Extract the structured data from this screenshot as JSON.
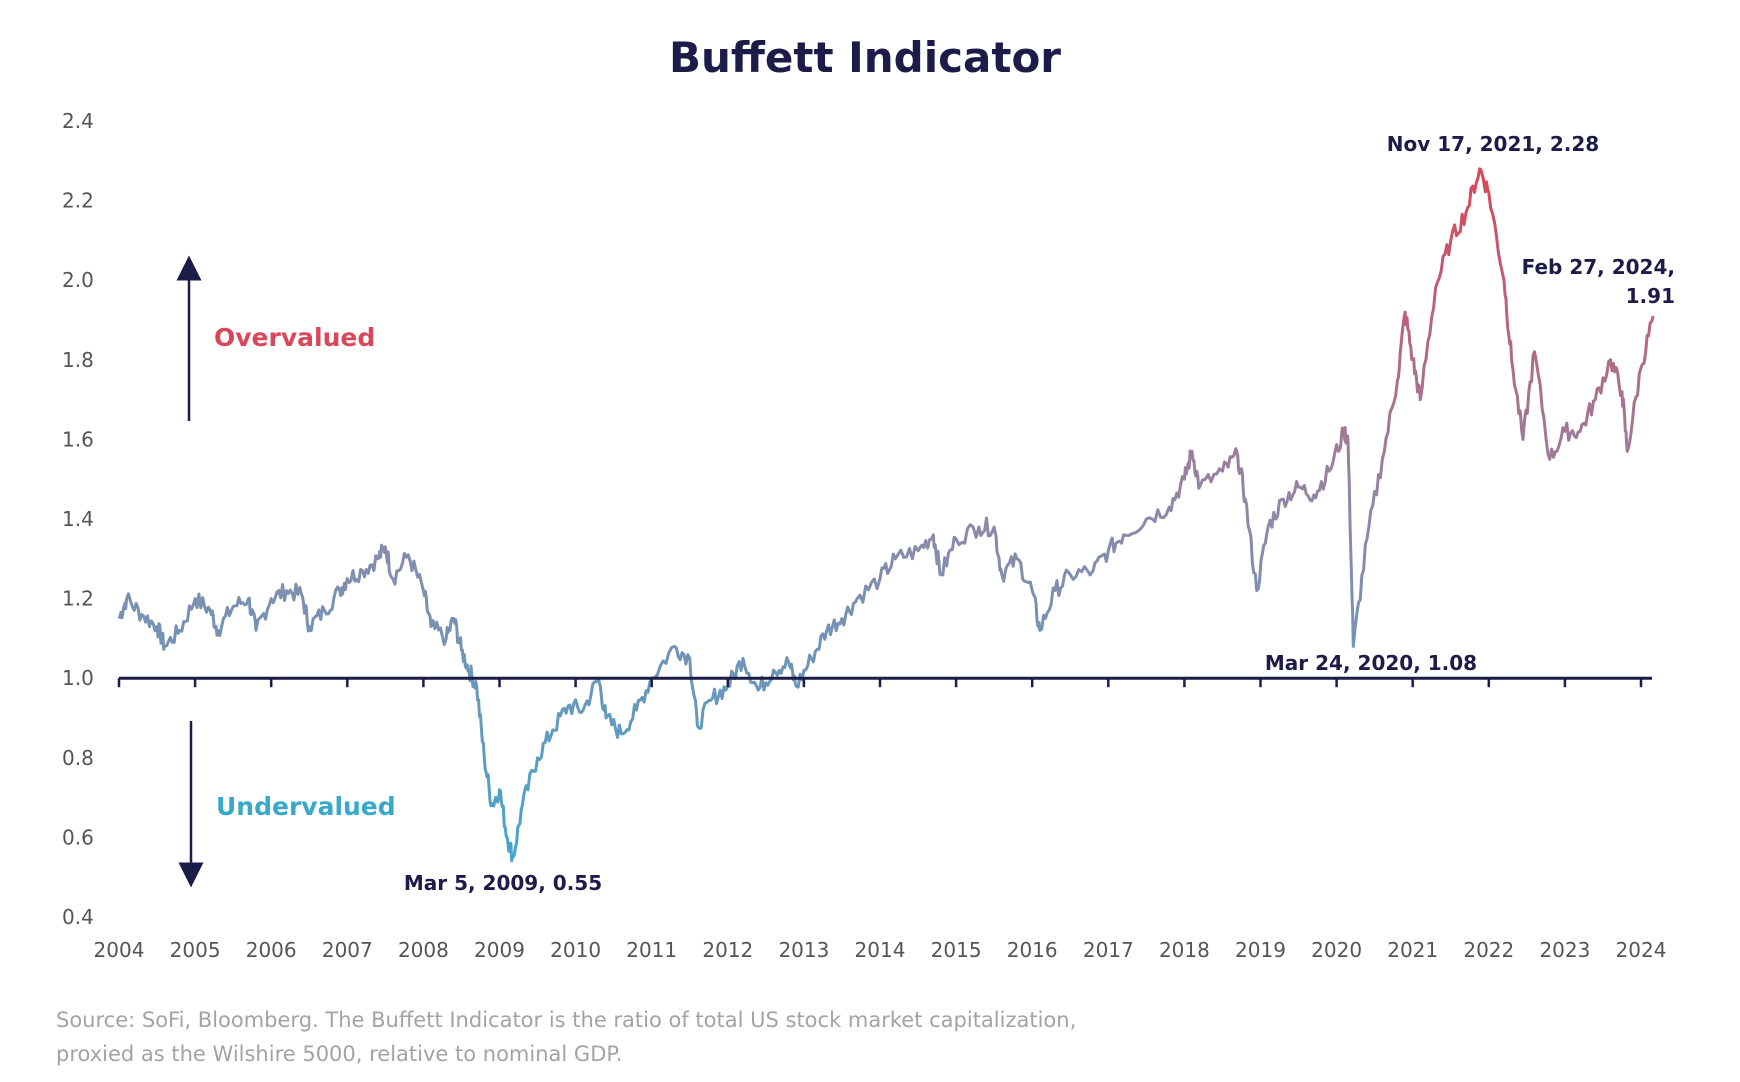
{
  "chart_data": {
    "type": "line",
    "title": "Buffett Indicator",
    "xlabel": "",
    "ylabel": "",
    "xlim": [
      2004,
      2024.2
    ],
    "ylim": [
      0.4,
      2.4
    ],
    "x_ticks": [
      "2004",
      "2005",
      "2006",
      "2007",
      "2008",
      "2009",
      "2010",
      "2011",
      "2012",
      "2013",
      "2014",
      "2015",
      "2016",
      "2017",
      "2018",
      "2019",
      "2020",
      "2021",
      "2022",
      "2023",
      "2024"
    ],
    "y_ticks": [
      "2.4",
      "2.2",
      "2.0",
      "1.8",
      "1.6",
      "1.4",
      "1.2",
      "1.0",
      "0.8",
      "0.6",
      "0.4"
    ],
    "grid": false,
    "reference_line": 1.0,
    "colors": {
      "low": "#45a6cc",
      "mid": "#8f88a8",
      "high": "#d9475a",
      "text": "#1d1b48",
      "overvalued": "#d9485a",
      "undervalued": "#38a9c9"
    },
    "series": [
      {
        "x": [
          2004.0,
          2004.1,
          2004.3,
          2004.5,
          2004.6,
          2004.8,
          2005.0,
          2005.2,
          2005.3,
          2005.5,
          2005.7,
          2005.8,
          2006.0,
          2006.2,
          2006.4,
          2006.5,
          2006.7,
          2006.9,
          2007.0,
          2007.2,
          2007.4,
          2007.5,
          2007.6,
          2007.8,
          2008.0,
          2008.1,
          2008.3,
          2008.4,
          2008.5,
          2008.6,
          2008.7,
          2008.8,
          2008.9,
          2009.0,
          2009.1,
          2009.18,
          2009.3,
          2009.5,
          2009.7,
          2009.9,
          2010.1,
          2010.3,
          2010.4,
          2010.6,
          2010.8,
          2011.0,
          2011.3,
          2011.5,
          2011.6,
          2011.8,
          2012.0,
          2012.2,
          2012.4,
          2012.6,
          2012.8,
          2012.9,
          2013.1,
          2013.3,
          2013.5,
          2013.7,
          2014.0,
          2014.2,
          2014.5,
          2014.7,
          2014.8,
          2015.0,
          2015.3,
          2015.5,
          2015.6,
          2015.8,
          2016.0,
          2016.1,
          2016.3,
          2016.5,
          2016.8,
          2017.0,
          2017.2,
          2017.5,
          2017.8,
          2018.0,
          2018.1,
          2018.2,
          2018.5,
          2018.7,
          2018.8,
          2018.95,
          2019.1,
          2019.3,
          2019.5,
          2019.7,
          2019.9,
          2020.1,
          2020.15,
          2020.22,
          2020.4,
          2020.6,
          2020.8,
          2020.9,
          2021.0,
          2021.1,
          2021.3,
          2021.5,
          2021.7,
          2021.88,
          2022.0,
          2022.2,
          2022.3,
          2022.45,
          2022.6,
          2022.8,
          2023.0,
          2023.2,
          2023.4,
          2023.6,
          2023.75,
          2023.82,
          2024.0,
          2024.16
        ],
        "y": [
          1.15,
          1.2,
          1.16,
          1.13,
          1.08,
          1.12,
          1.2,
          1.17,
          1.12,
          1.18,
          1.2,
          1.12,
          1.2,
          1.22,
          1.21,
          1.13,
          1.17,
          1.22,
          1.25,
          1.27,
          1.3,
          1.33,
          1.25,
          1.31,
          1.22,
          1.13,
          1.1,
          1.15,
          1.07,
          1.02,
          0.98,
          0.8,
          0.68,
          0.72,
          0.6,
          0.55,
          0.68,
          0.8,
          0.87,
          0.93,
          0.92,
          1.0,
          0.9,
          0.86,
          0.92,
          1.0,
          1.08,
          1.05,
          0.88,
          0.95,
          0.98,
          1.05,
          0.97,
          1.02,
          1.04,
          0.98,
          1.05,
          1.12,
          1.15,
          1.2,
          1.25,
          1.3,
          1.32,
          1.36,
          1.26,
          1.35,
          1.38,
          1.38,
          1.26,
          1.3,
          1.22,
          1.12,
          1.22,
          1.26,
          1.27,
          1.32,
          1.36,
          1.4,
          1.43,
          1.5,
          1.57,
          1.48,
          1.52,
          1.56,
          1.45,
          1.22,
          1.38,
          1.45,
          1.48,
          1.46,
          1.52,
          1.62,
          1.6,
          1.08,
          1.35,
          1.55,
          1.75,
          1.92,
          1.8,
          1.7,
          1.98,
          2.1,
          2.17,
          2.28,
          2.22,
          2.0,
          1.8,
          1.6,
          1.82,
          1.55,
          1.62,
          1.62,
          1.7,
          1.8,
          1.72,
          1.57,
          1.78,
          1.91
        ]
      }
    ],
    "annotations": {
      "peak": "Nov 17, 2021, 2.28",
      "latest_line1": "Feb 27, 2024,",
      "latest_line2": "1.91",
      "covid_low": "Mar 24, 2020, 1.08",
      "gfc_low": "Mar 5, 2009, 0.55",
      "overvalued": "Overvalued",
      "undervalued": "Undervalued"
    }
  },
  "source": {
    "line1": "Source: SoFi, Bloomberg. The Buffett Indicator is the ratio of total US stock market capitalization,",
    "line2": "proxied as the Wilshire 5000, relative to nominal GDP."
  }
}
